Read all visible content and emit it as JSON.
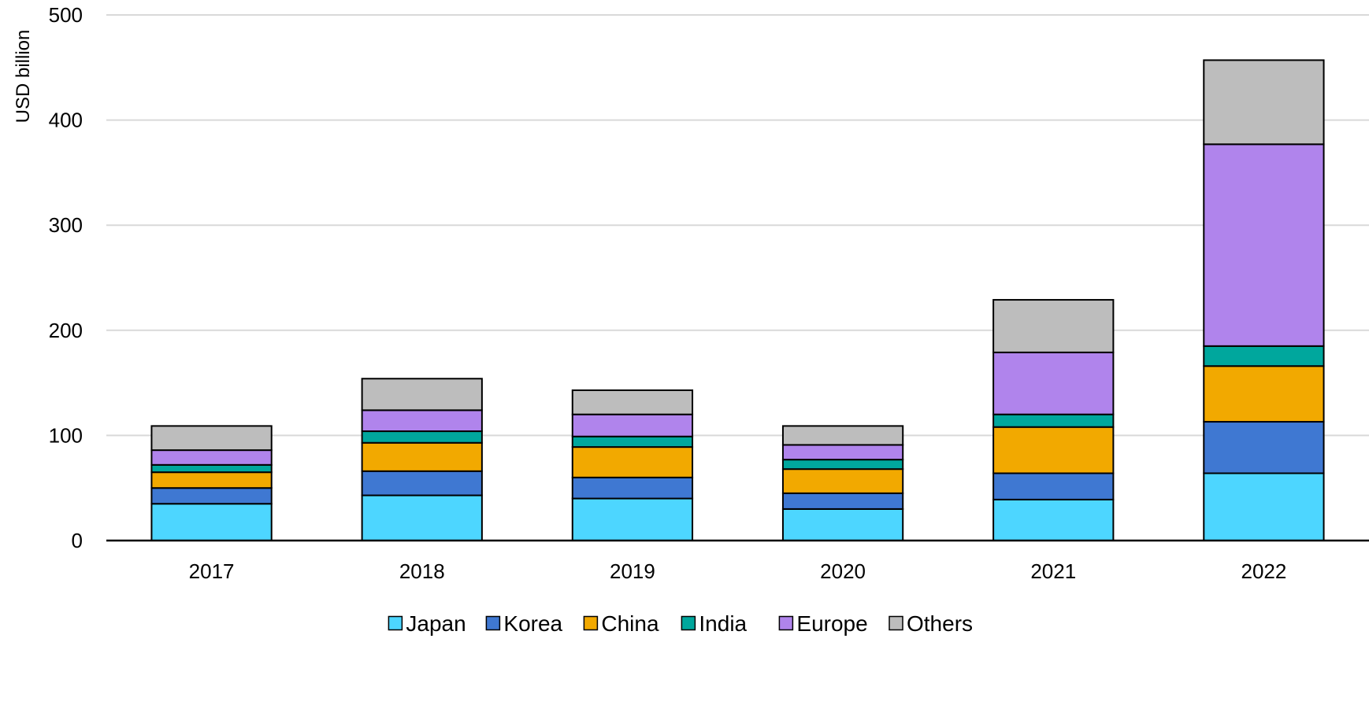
{
  "chart_data": {
    "type": "bar",
    "stacked": true,
    "title": "",
    "xlabel": "",
    "ylabel": "USD billion",
    "ylim": [
      0,
      500
    ],
    "yticks": [
      0,
      100,
      200,
      300,
      400,
      500
    ],
    "grid": true,
    "legend_position": "bottom",
    "categories": [
      "2017",
      "2018",
      "2019",
      "2020",
      "2021",
      "2022"
    ],
    "series": [
      {
        "name": "Japan",
        "color": "#4dd6ff",
        "values": [
          35,
          43,
          40,
          30,
          39,
          64
        ]
      },
      {
        "name": "Korea",
        "color": "#3f78d2",
        "values": [
          15,
          23,
          20,
          15,
          25,
          49
        ]
      },
      {
        "name": "China",
        "color": "#f2a900",
        "values": [
          15,
          27,
          29,
          23,
          44,
          53
        ]
      },
      {
        "name": "India",
        "color": "#00a79d",
        "values": [
          7,
          11,
          10,
          9,
          12,
          19
        ]
      },
      {
        "name": "Europe",
        "color": "#b084ec",
        "values": [
          14,
          20,
          21,
          14,
          59,
          192
        ]
      },
      {
        "name": "Others",
        "color": "#bdbdbd",
        "values": [
          23,
          30,
          23,
          18,
          50,
          80
        ]
      }
    ]
  }
}
